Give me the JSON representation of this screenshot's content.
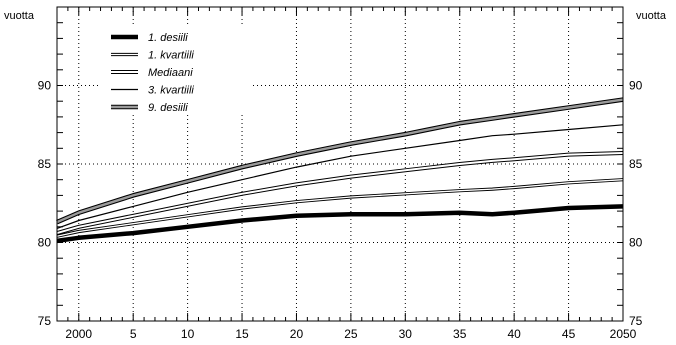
{
  "chart_data": {
    "type": "line",
    "ylabel_left": "vuotta",
    "ylabel_right": "vuotta",
    "xlim": [
      1998,
      2050
    ],
    "ylim": [
      75,
      95
    ],
    "x_ticks": [
      2000,
      2005,
      2010,
      2015,
      2020,
      2025,
      2030,
      2035,
      2040,
      2045,
      2050
    ],
    "x_tick_labels": [
      "2000",
      "5",
      "10",
      "15",
      "20",
      "25",
      "30",
      "35",
      "40",
      "45",
      "2050"
    ],
    "y_ticks": [
      75,
      80,
      85,
      90
    ],
    "y_tick_labels": [
      "75",
      "80",
      "85",
      "90"
    ],
    "grid": true,
    "legend_position": "top-left",
    "x": [
      1998,
      2000,
      2005,
      2010,
      2015,
      2020,
      2025,
      2030,
      2035,
      2038,
      2040,
      2045,
      2050
    ],
    "series": [
      {
        "name": "1. desiili",
        "style": "thick-black",
        "values": [
          80.1,
          80.3,
          80.6,
          81.0,
          81.4,
          81.7,
          81.8,
          81.8,
          81.9,
          81.8,
          81.9,
          82.2,
          82.3
        ]
      },
      {
        "name": "1. kvartiili",
        "style": "double-thin",
        "values": [
          80.4,
          80.7,
          81.2,
          81.7,
          82.2,
          82.6,
          82.9,
          83.1,
          83.3,
          83.4,
          83.5,
          83.8,
          84.0
        ]
      },
      {
        "name": "Mediaani",
        "style": "double-medium",
        "values": [
          80.6,
          81.0,
          81.7,
          82.4,
          83.1,
          83.7,
          84.2,
          84.6,
          85.0,
          85.2,
          85.3,
          85.6,
          85.7
        ]
      },
      {
        "name": "3. kvartiili",
        "style": "thin",
        "values": [
          80.9,
          81.4,
          82.3,
          83.2,
          84.0,
          84.8,
          85.5,
          86.0,
          86.5,
          86.8,
          86.9,
          87.2,
          87.5
        ]
      },
      {
        "name": "9. desiili",
        "style": "double-grey",
        "values": [
          81.3,
          81.9,
          83.0,
          83.9,
          84.8,
          85.6,
          86.3,
          86.9,
          87.6,
          87.9,
          88.1,
          88.6,
          89.1
        ]
      }
    ]
  }
}
